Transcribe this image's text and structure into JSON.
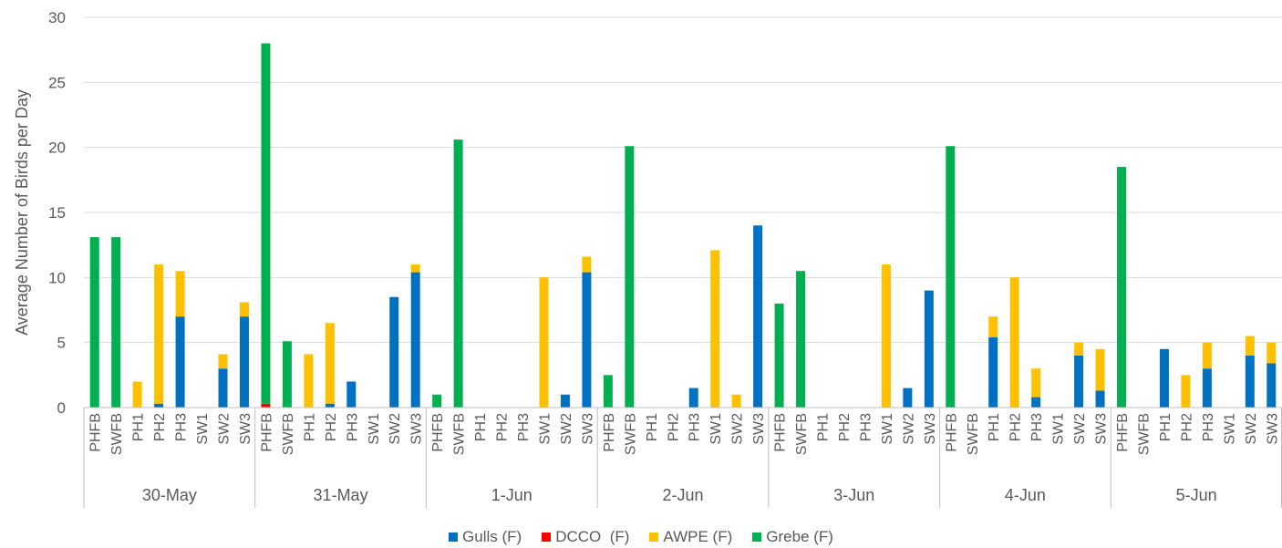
{
  "chart_data": {
    "type": "bar",
    "stacked": true,
    "ylabel": "Average Number of Birds per  Day",
    "ylim": [
      0,
      30
    ],
    "yticks": [
      0,
      5,
      10,
      15,
      20,
      25,
      30
    ],
    "grid": true,
    "legend_position": "bottom",
    "groups": [
      "30-May",
      "31-May",
      "1-Jun",
      "2-Jun",
      "3-Jun",
      "4-Jun",
      "5-Jun"
    ],
    "sites": [
      "PHFB",
      "SWFB",
      "PH1",
      "PH2",
      "PH3",
      "SW1",
      "SW2",
      "SW3"
    ],
    "series": [
      {
        "name": "Gulls (F)",
        "color": "#0070C0",
        "values": [
          [
            0,
            0,
            0,
            0.3,
            7,
            0,
            3,
            7
          ],
          [
            0,
            0,
            0,
            0.3,
            2,
            0,
            8.5,
            10.4
          ],
          [
            0,
            0,
            0,
            0,
            0,
            0,
            1,
            10.4
          ],
          [
            0,
            0,
            0,
            0,
            1.5,
            0,
            0,
            14
          ],
          [
            0,
            0,
            0,
            0,
            0,
            0,
            1.5,
            9
          ],
          [
            0,
            0,
            5.4,
            0,
            0.8,
            0,
            4,
            1.3
          ],
          [
            0,
            0,
            4.5,
            0,
            3,
            0,
            4,
            3.4
          ]
        ]
      },
      {
        "name": "DCCO  (F)",
        "color": "#FF0000",
        "values": [
          [
            0,
            0,
            0,
            0,
            0,
            0,
            0,
            0
          ],
          [
            0.3,
            0,
            0,
            0,
            0,
            0,
            0,
            0
          ],
          [
            0,
            0,
            0,
            0,
            0,
            0,
            0,
            0
          ],
          [
            0,
            0,
            0,
            0,
            0,
            0,
            0,
            0
          ],
          [
            0,
            0,
            0,
            0,
            0,
            0,
            0,
            0
          ],
          [
            0,
            0,
            0,
            0,
            0,
            0,
            0,
            0
          ],
          [
            0,
            0,
            0,
            0,
            0,
            0,
            0,
            0
          ]
        ]
      },
      {
        "name": "AWPE (F)",
        "color": "#FFC000",
        "values": [
          [
            0,
            0,
            2,
            10.7,
            3.5,
            0,
            1.1,
            1.1
          ],
          [
            0,
            0,
            4.1,
            6.2,
            0,
            0,
            0,
            0.6
          ],
          [
            0,
            0,
            0,
            0,
            0,
            10,
            0,
            1.2
          ],
          [
            0,
            0,
            0,
            0,
            0,
            12.1,
            1,
            0
          ],
          [
            0,
            0,
            0,
            0,
            0,
            11,
            0,
            0
          ],
          [
            0,
            0,
            1.6,
            10,
            2.2,
            0,
            1,
            3.2
          ],
          [
            0,
            0,
            0,
            2.5,
            2,
            0,
            1.5,
            1.6
          ]
        ]
      },
      {
        "name": "Grebe (F)",
        "color": "#00B050",
        "values": [
          [
            13.1,
            13.1,
            0,
            0,
            0,
            0,
            0,
            0
          ],
          [
            27.7,
            5.1,
            0,
            0,
            0,
            0,
            0,
            0
          ],
          [
            1,
            20.6,
            0,
            0,
            0,
            0,
            0,
            0
          ],
          [
            2.5,
            20.1,
            0,
            0,
            0,
            0,
            0,
            0
          ],
          [
            8,
            10.5,
            0,
            0,
            0,
            0,
            0,
            0
          ],
          [
            20.1,
            0,
            0,
            0,
            0,
            0,
            0,
            0
          ],
          [
            18.5,
            0,
            0,
            0,
            0,
            0,
            0,
            0
          ]
        ]
      }
    ]
  }
}
